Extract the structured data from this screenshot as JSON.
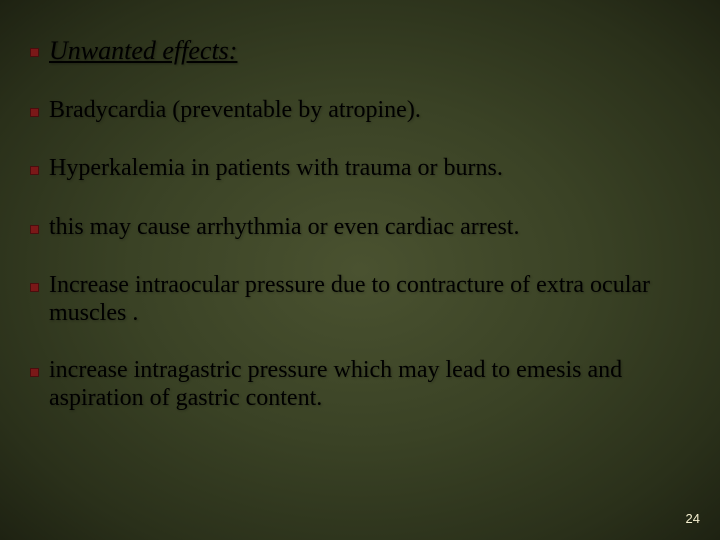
{
  "slide": {
    "heading": "Unwanted effects:",
    "items": [
      "Bradycardia (preventable by atropine).",
      "Hyperkalemia in patients with trauma or burns.",
      "this may cause arrhythmia or even cardiac arrest.",
      "Increase intraocular pressure due to contracture of extra ocular muscles .",
      " increase intragastric pressure which may lead to emesis and aspiration of gastric content."
    ],
    "page_number": "24",
    "bullet_color": "#7a1818",
    "text_color": "#000000",
    "background_gradient": [
      "#4a5230",
      "#3a4225",
      "#2a301a",
      "#1e2212"
    ],
    "heading_fontsize": 26,
    "body_fontsize": 24,
    "font_family": "Georgia, Times New Roman, serif"
  }
}
